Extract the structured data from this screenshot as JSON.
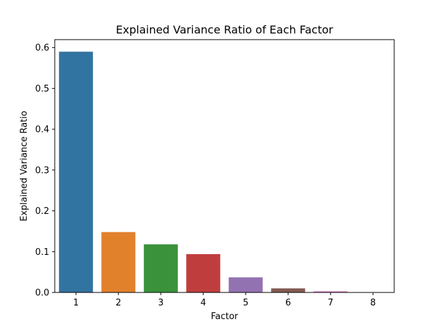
{
  "chart_data": {
    "type": "bar",
    "title": "Explained Variance Ratio of Each Factor",
    "xlabel": "Factor",
    "ylabel": "Explained Variance Ratio",
    "categories": [
      "1",
      "2",
      "3",
      "4",
      "5",
      "6",
      "7",
      "8"
    ],
    "values": [
      0.59,
      0.148,
      0.118,
      0.094,
      0.037,
      0.01,
      0.003,
      0.0
    ],
    "colors": [
      "#3274a1",
      "#e1812c",
      "#3a923a",
      "#c03d3e",
      "#9372b2",
      "#845b53",
      "#d684bd",
      "#7f7f7f"
    ],
    "ylim": [
      0,
      0.6195
    ],
    "yticks": [
      0.0,
      0.1,
      0.2,
      0.3,
      0.4,
      0.5,
      0.6
    ],
    "ytick_labels": [
      "0.0",
      "0.1",
      "0.2",
      "0.3",
      "0.4",
      "0.5",
      "0.6"
    ],
    "grid": false,
    "legend": "none"
  }
}
